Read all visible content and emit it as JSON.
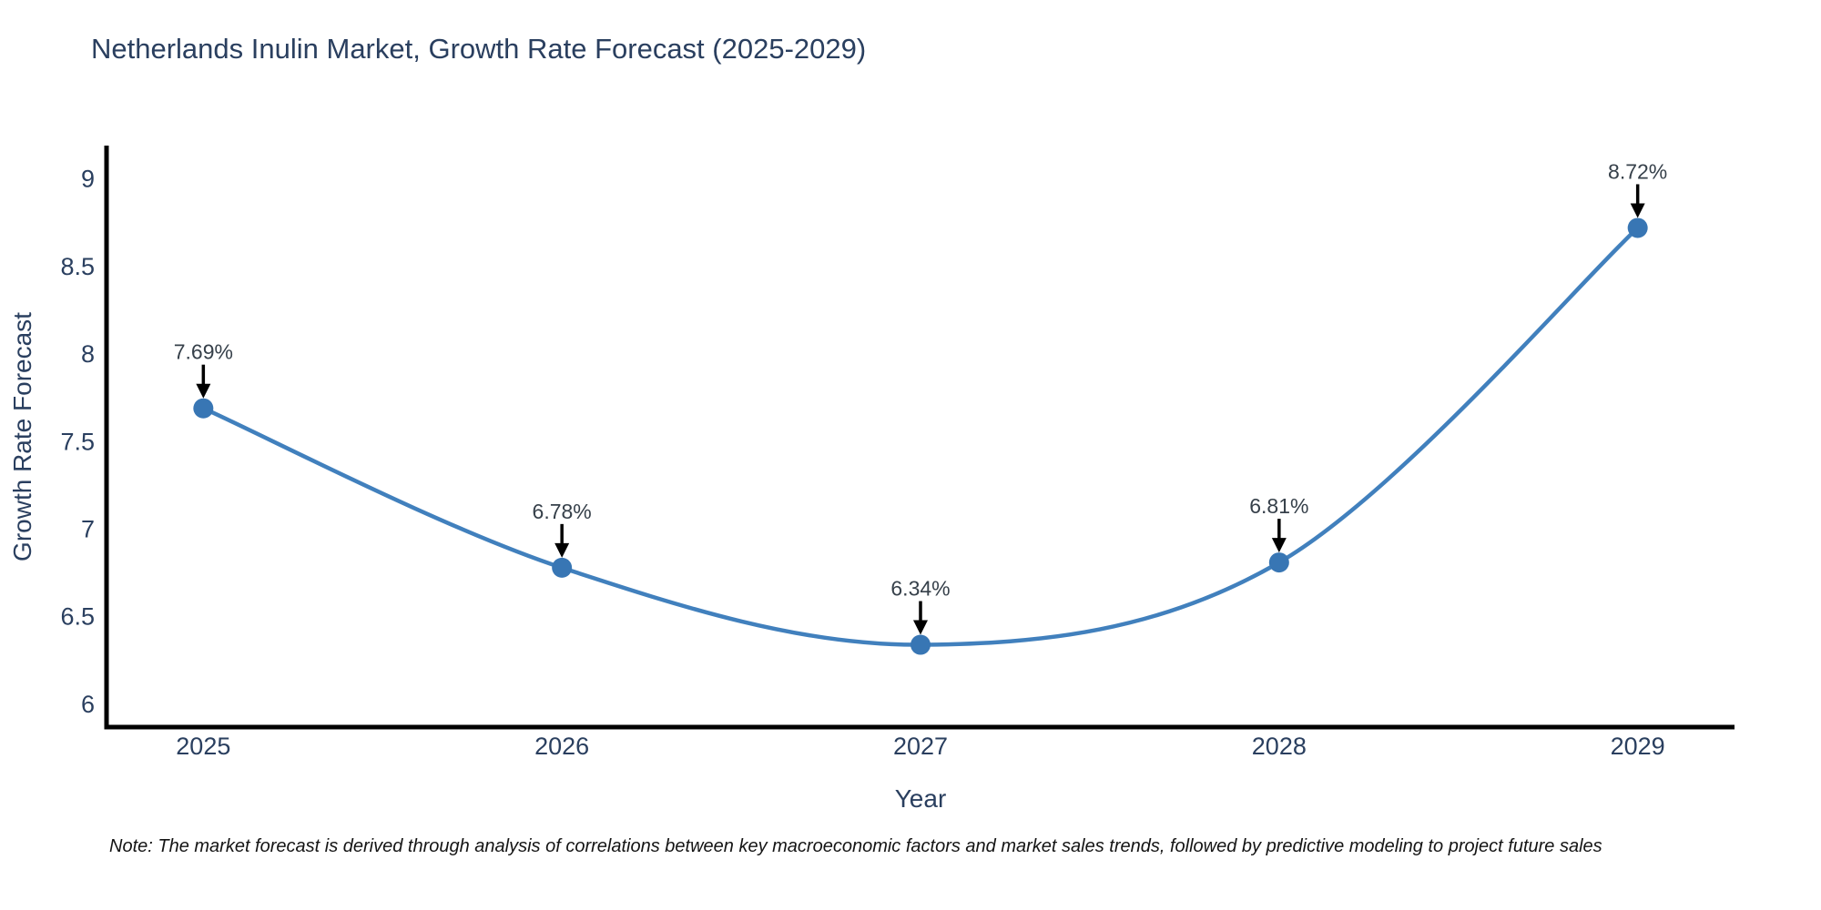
{
  "chart_data": {
    "type": "line",
    "title": "Netherlands Inulin Market, Growth Rate Forecast (2025-2029)",
    "xlabel": "Year",
    "ylabel": "Growth Rate Forecast",
    "x": [
      2025,
      2026,
      2027,
      2028,
      2029
    ],
    "y": [
      7.69,
      6.78,
      6.34,
      6.81,
      8.72
    ],
    "point_labels": [
      "7.69%",
      "6.78%",
      "6.34%",
      "6.81%",
      "8.72%"
    ],
    "x_tick_labels": [
      "2025",
      "2026",
      "2027",
      "2028",
      "2029"
    ],
    "x_tick_values": [
      2025,
      2026,
      2027,
      2028,
      2029
    ],
    "y_tick_labels": [
      "9",
      "8.5",
      "8",
      "7.5",
      "7",
      "6.5",
      "6"
    ],
    "y_tick_values": [
      9,
      8.5,
      8,
      7.5,
      7,
      6.5,
      6
    ],
    "xlim": [
      2024.73,
      2029.27
    ],
    "ylim": [
      5.87,
      9.19
    ],
    "grid": false,
    "legend": false,
    "line_shape": "spline",
    "colors": {
      "line": "#4180bd",
      "marker": "#3876b4",
      "axis_line": "#000000",
      "axis_text": "#2a3f5f",
      "annotation_text": "#36404a",
      "annotation_arrow": "#000000",
      "title_text": "#2a3f5f",
      "note_text": "#141414",
      "background": "#ffffff"
    }
  },
  "note": {
    "text": "Note: The market forecast is derived through analysis of correlations between key macroeconomic factors and market sales trends, followed by predictive modeling to project future sales"
  }
}
